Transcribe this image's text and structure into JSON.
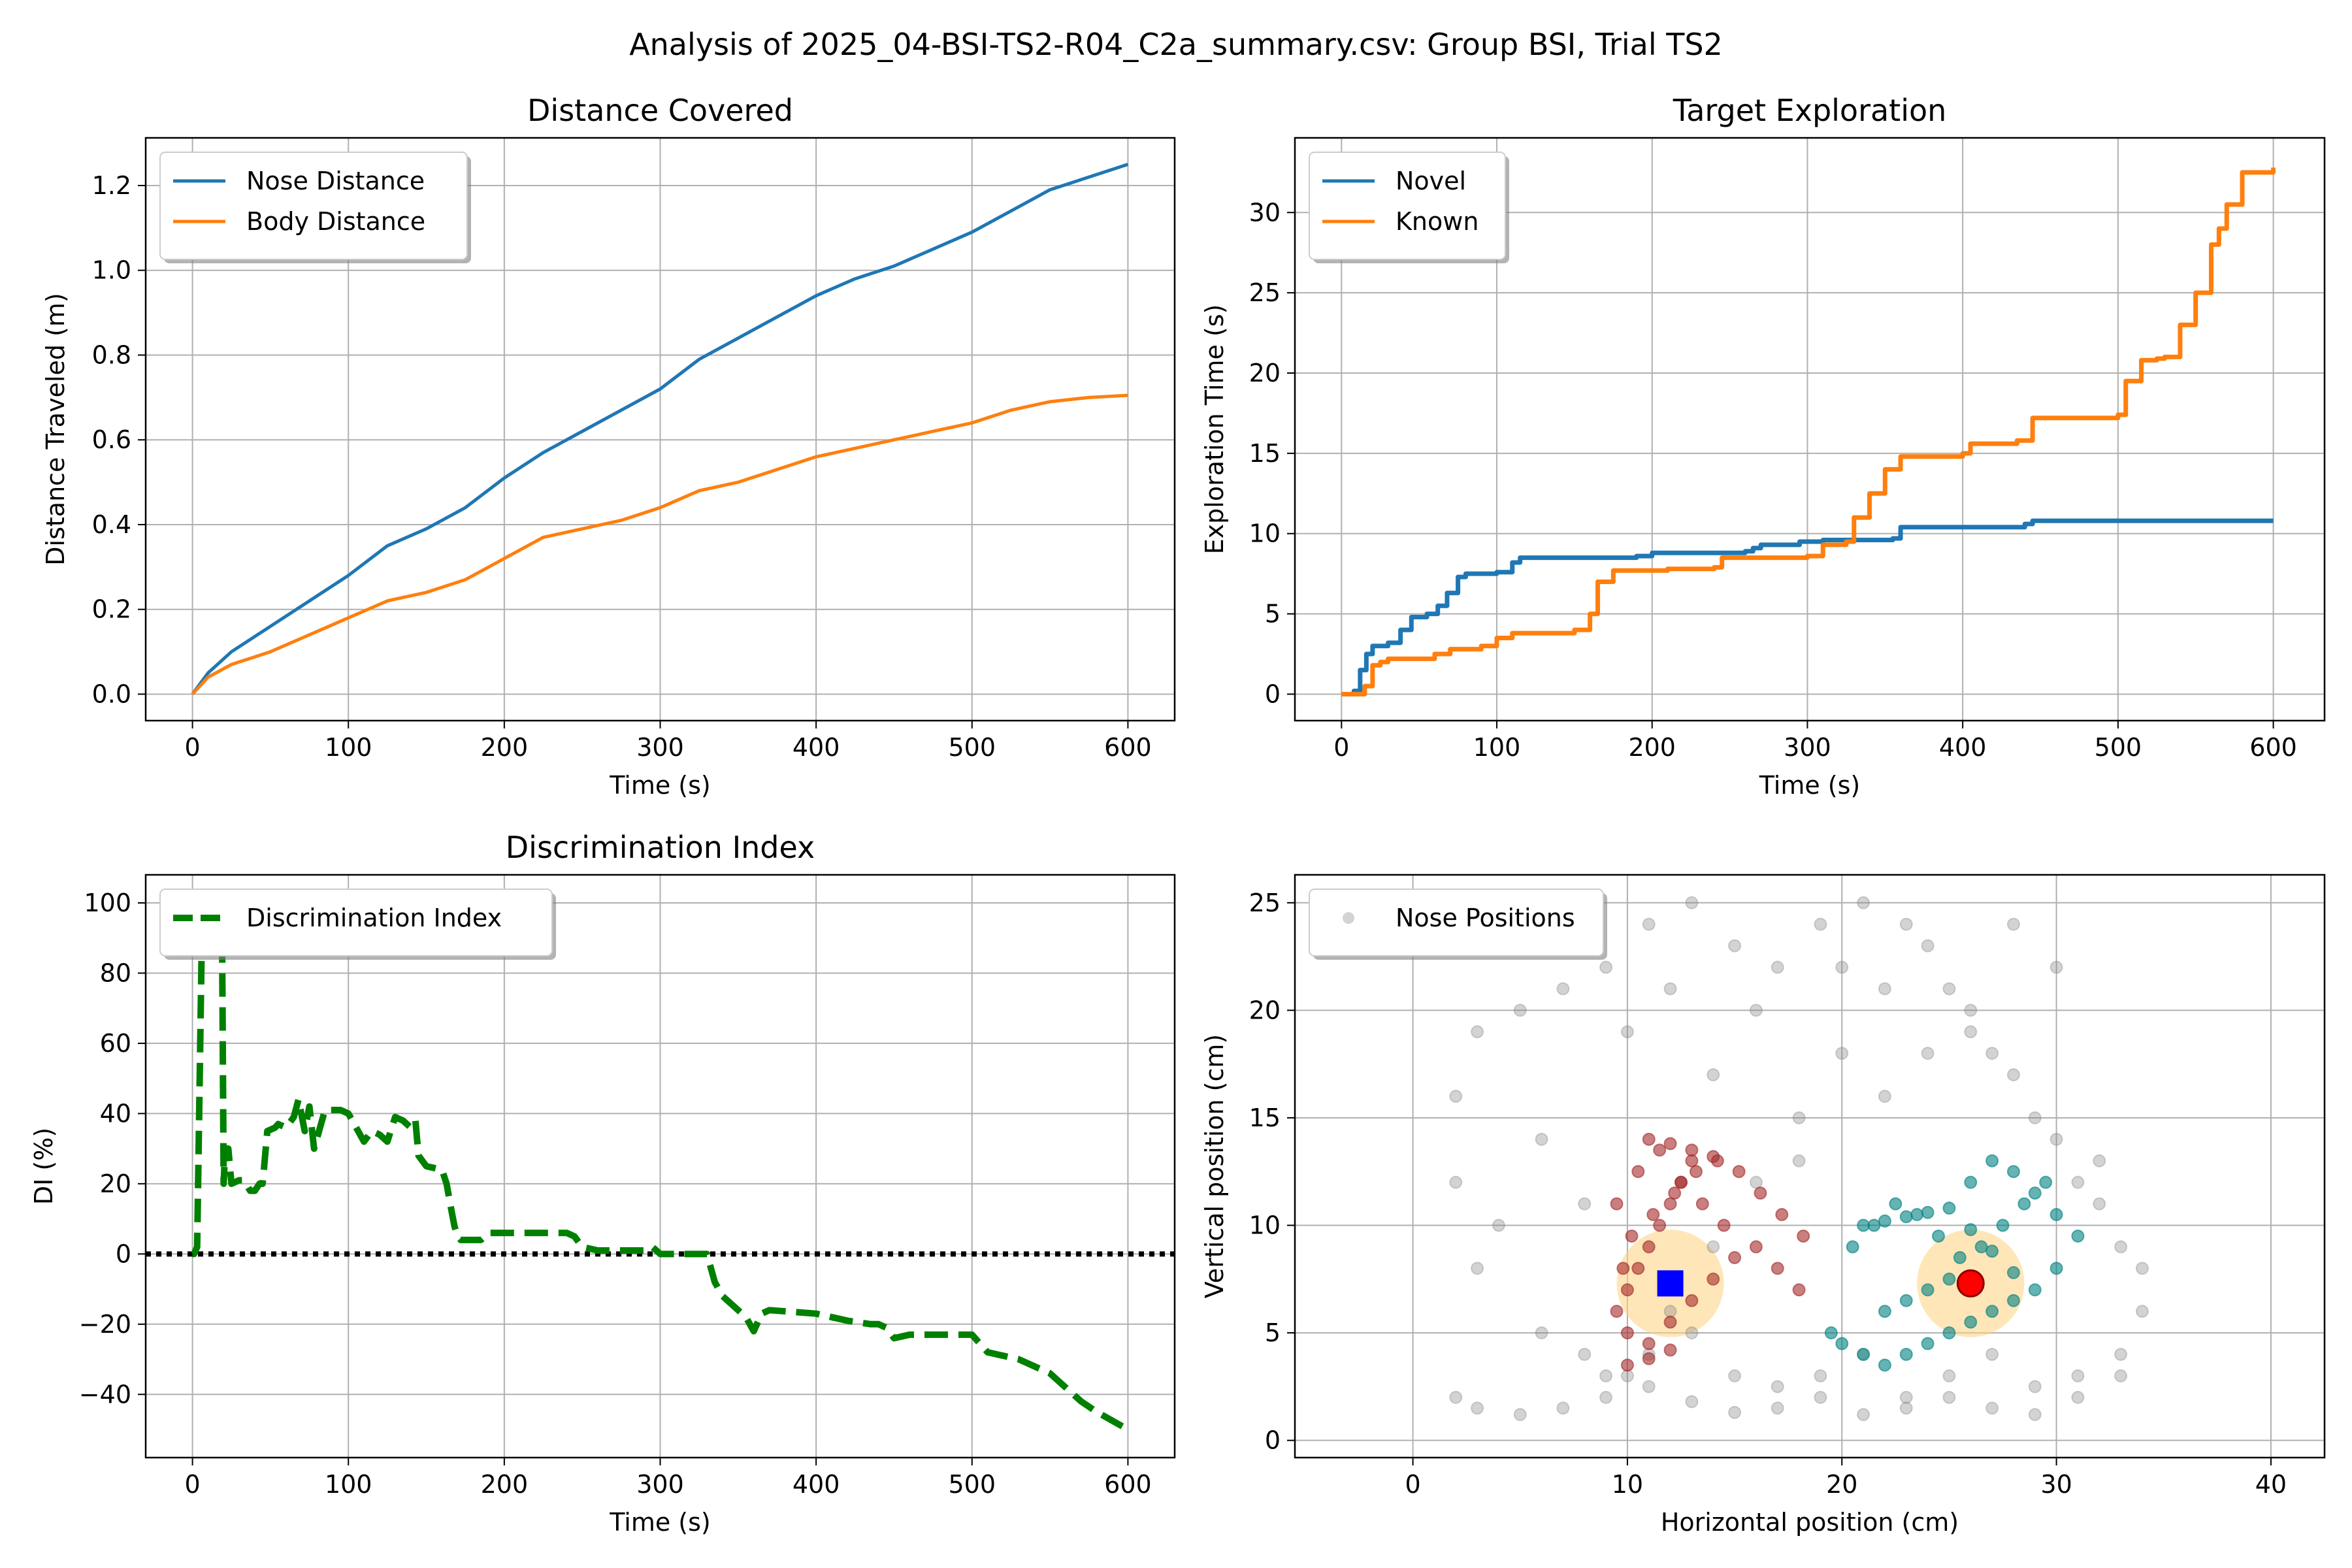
{
  "figure": {
    "suptitle": "Analysis of 2025_04-BSI-TS2-R04_C2a_summary.csv: Group BSI, Trial TS2"
  },
  "colors": {
    "blue": "#1f77b4",
    "orange": "#ff7f0e",
    "green": "#008000",
    "grid": "#b0b0b0",
    "gray": "#808080",
    "teal": "#008080",
    "brown": "#a52a2a",
    "highlight": "#ffd27f",
    "novel_marker": "#ff0000",
    "known_marker": "#0000ff"
  },
  "chart_data": [
    {
      "type": "line",
      "title": "Distance Covered",
      "xlabel": "Time (s)",
      "ylabel": "Distance Traveled (m)",
      "xlim": [
        -30,
        630
      ],
      "ylim": [
        -0.0625,
        1.3125
      ],
      "xticks": [
        0,
        100,
        200,
        300,
        400,
        500,
        600
      ],
      "yticks": [
        0.0,
        0.2,
        0.4,
        0.6,
        0.8,
        1.0,
        1.2
      ],
      "ytick_labels": [
        "0.0",
        "0.2",
        "0.4",
        "0.6",
        "0.8",
        "1.0",
        "1.2"
      ],
      "grid": true,
      "legend_position": "upper-left",
      "series": [
        {
          "name": "Nose Distance",
          "color": "#1f77b4",
          "x": [
            0,
            10,
            25,
            50,
            75,
            100,
            125,
            150,
            175,
            200,
            225,
            250,
            275,
            300,
            325,
            350,
            375,
            400,
            425,
            450,
            475,
            500,
            525,
            550,
            575,
            600
          ],
          "y": [
            0,
            0.05,
            0.1,
            0.16,
            0.22,
            0.28,
            0.35,
            0.39,
            0.44,
            0.51,
            0.57,
            0.62,
            0.67,
            0.72,
            0.79,
            0.84,
            0.89,
            0.94,
            0.98,
            1.01,
            1.05,
            1.09,
            1.14,
            1.19,
            1.22,
            1.25
          ]
        },
        {
          "name": "Body Distance",
          "color": "#ff7f0e",
          "x": [
            0,
            10,
            25,
            50,
            75,
            100,
            125,
            150,
            175,
            200,
            225,
            250,
            275,
            300,
            325,
            350,
            375,
            400,
            425,
            450,
            475,
            500,
            525,
            550,
            575,
            600
          ],
          "y": [
            0,
            0.04,
            0.07,
            0.1,
            0.14,
            0.18,
            0.22,
            0.24,
            0.27,
            0.32,
            0.37,
            0.39,
            0.41,
            0.44,
            0.48,
            0.5,
            0.53,
            0.56,
            0.58,
            0.6,
            0.62,
            0.64,
            0.67,
            0.69,
            0.7,
            0.705
          ]
        }
      ]
    },
    {
      "type": "line",
      "title": "Target Exploration",
      "xlabel": "Time (s)",
      "ylabel": "Exploration Time (s)",
      "xlim": [
        -30,
        633
      ],
      "ylim": [
        -1.65,
        34.65
      ],
      "xticks": [
        0,
        100,
        200,
        300,
        400,
        500,
        600
      ],
      "yticks": [
        0,
        5,
        10,
        15,
        20,
        25,
        30
      ],
      "grid": true,
      "legend_position": "upper-left",
      "series": [
        {
          "name": "Novel",
          "color": "#1f77b4",
          "x": [
            0,
            8,
            12,
            16,
            20,
            30,
            38,
            45,
            55,
            62,
            68,
            75,
            80,
            100,
            110,
            115,
            190,
            200,
            260,
            265,
            270,
            295,
            310,
            355,
            360,
            440,
            445,
            600
          ],
          "y": [
            0,
            0.2,
            1.5,
            2.5,
            3.0,
            3.2,
            4.0,
            4.8,
            5.0,
            5.5,
            6.3,
            7.3,
            7.5,
            7.6,
            8.2,
            8.5,
            8.6,
            8.8,
            8.9,
            9.1,
            9.3,
            9.5,
            9.6,
            9.7,
            10.4,
            10.6,
            10.8,
            10.8
          ]
        },
        {
          "name": "Known",
          "color": "#ff7f0e",
          "x": [
            0,
            15,
            20,
            25,
            30,
            60,
            70,
            90,
            100,
            110,
            150,
            160,
            165,
            175,
            210,
            240,
            245,
            300,
            310,
            325,
            330,
            340,
            350,
            360,
            400,
            405,
            435,
            445,
            500,
            505,
            515,
            525,
            530,
            540,
            550,
            560,
            565,
            570,
            580,
            600
          ],
          "y": [
            0,
            0.5,
            1.8,
            2.0,
            2.2,
            2.5,
            2.8,
            3.0,
            3.5,
            3.8,
            4.0,
            5.0,
            7.0,
            7.7,
            7.8,
            7.9,
            8.5,
            8.6,
            9.3,
            9.5,
            11.0,
            12.5,
            14.0,
            14.8,
            15.0,
            15.6,
            15.8,
            17.2,
            17.4,
            19.5,
            20.8,
            20.9,
            21.0,
            23.0,
            25.0,
            28.0,
            29.0,
            30.5,
            32.5,
            32.8
          ]
        }
      ]
    },
    {
      "type": "line",
      "title": "Discrimination Index",
      "xlabel": "Time (s)",
      "ylabel": "DI (%)",
      "xlim": [
        -30,
        630
      ],
      "ylim": [
        -58,
        108
      ],
      "xticks": [
        0,
        100,
        200,
        300,
        400,
        500,
        600
      ],
      "yticks": [
        -40,
        -20,
        0,
        20,
        40,
        60,
        80,
        100
      ],
      "ytick_labels": [
        "−40",
        "−20",
        "0",
        "20",
        "40",
        "60",
        "80",
        "100"
      ],
      "grid": true,
      "legend_position": "upper-left",
      "reference_line": {
        "y": 0,
        "style": "dotted",
        "color": "#000000"
      },
      "series": [
        {
          "name": "Discrimination Index",
          "color": "#008000",
          "style": "dashed",
          "x": [
            0,
            1,
            3,
            6,
            15,
            19,
            20,
            21,
            23,
            25,
            30,
            33,
            37,
            40,
            43,
            45,
            48,
            53,
            55,
            60,
            65,
            68,
            72,
            75,
            78,
            85,
            95,
            100,
            110,
            115,
            120,
            125,
            130,
            135,
            140,
            143,
            145,
            150,
            160,
            163,
            165,
            168,
            170,
            172,
            180,
            185,
            190,
            200,
            240,
            245,
            250,
            260,
            290,
            295,
            300,
            305,
            330,
            335,
            340,
            345,
            350,
            355,
            360,
            365,
            370,
            400,
            410,
            420,
            435,
            440,
            445,
            450,
            460,
            480,
            490,
            500,
            510,
            520,
            530,
            540,
            545,
            550,
            560,
            570,
            580,
            600
          ],
          "y": [
            0,
            0,
            2,
            90,
            90,
            90,
            20,
            30,
            30,
            20,
            21,
            21,
            18,
            18,
            20,
            20,
            35,
            36,
            37,
            36,
            39,
            44,
            35,
            42,
            30,
            41,
            41,
            40,
            32,
            35,
            34,
            32,
            39,
            38,
            36,
            38,
            28,
            25,
            24,
            20,
            15,
            8,
            5,
            4,
            4,
            4,
            6,
            6,
            6,
            5,
            2,
            1,
            1,
            2,
            0,
            0,
            0,
            -8,
            -12,
            -14,
            -16,
            -18,
            -22,
            -17,
            -16,
            -17,
            -18,
            -19,
            -20,
            -20,
            -21,
            -24,
            -23,
            -23,
            -23,
            -23,
            -28,
            -29,
            -30,
            -32,
            -33,
            -34,
            -38,
            -42,
            -45,
            -50
          ]
        }
      ]
    },
    {
      "type": "scatter",
      "title": "",
      "xlabel": "Horizontal position (cm)",
      "ylabel": "Vertical position (cm)",
      "xlim": [
        -5.5,
        42.5
      ],
      "ylim": [
        -0.8,
        26.3
      ],
      "xticks": [
        0,
        10,
        20,
        30,
        40
      ],
      "yticks": [
        0,
        5,
        10,
        15,
        20,
        25
      ],
      "grid": true,
      "legend_position": "upper-left",
      "series": [
        {
          "name": "Nose Positions",
          "color": "#808080",
          "x": [
            2,
            3,
            5,
            7,
            9,
            11,
            13,
            15,
            17,
            19,
            21,
            23,
            25,
            27,
            29,
            31,
            33,
            34,
            33,
            31,
            29,
            27,
            25,
            23,
            21,
            19,
            17,
            15,
            13,
            11,
            9,
            7,
            5,
            3,
            2,
            2,
            3,
            6,
            8,
            10,
            12,
            14,
            16,
            18,
            20,
            22,
            24,
            26,
            28,
            30,
            32,
            34,
            30,
            26,
            22,
            18,
            14,
            10,
            6,
            4,
            8,
            12,
            16,
            20,
            24,
            28,
            32,
            9,
            11,
            13,
            15,
            17,
            19,
            21,
            23,
            25,
            27,
            29,
            31,
            33
          ],
          "y": [
            2,
            1.5,
            1.2,
            1.5,
            2,
            2.5,
            1.8,
            1.3,
            1.5,
            2,
            1.2,
            1.5,
            2,
            1.5,
            1.2,
            2,
            3,
            6,
            9,
            12,
            15,
            18,
            21,
            24,
            25,
            24,
            22,
            23,
            25,
            24,
            22,
            21,
            20,
            19,
            16,
            12,
            8,
            5,
            4,
            3,
            6,
            9,
            12,
            15,
            18,
            21,
            23,
            20,
            17,
            14,
            11,
            8,
            22,
            19,
            16,
            13,
            17,
            19,
            14,
            10,
            11,
            21,
            20,
            22,
            18,
            24,
            13,
            3,
            4,
            5,
            3,
            2.5,
            3,
            4,
            2,
            3,
            4,
            2.5,
            3,
            4
          ]
        },
        {
          "name": "",
          "color": "#a52a2a",
          "x": [
            9.5,
            10,
            10.5,
            11,
            11.5,
            12,
            12.5,
            13,
            10,
            11,
            12,
            13,
            14,
            15,
            9.5,
            10.5,
            11.5,
            12.5,
            13.5,
            14.5,
            16,
            17,
            18,
            11,
            12,
            13,
            14,
            10,
            11,
            12,
            9.8,
            10.2,
            11.2,
            12.2,
            13.2,
            14.2,
            15.2,
            16.2,
            17.2,
            18.2
          ],
          "y": [
            6,
            7,
            8,
            9,
            10,
            11,
            12,
            13,
            5,
            4.5,
            5.5,
            6.5,
            7.5,
            8.5,
            11,
            12.5,
            13.5,
            12,
            11,
            10,
            9,
            8,
            7,
            14,
            13.8,
            13.5,
            13.2,
            3.5,
            3.8,
            4.2,
            8,
            9.5,
            10.5,
            11.5,
            12.5,
            13,
            12.5,
            11.5,
            10.5,
            9.5
          ]
        },
        {
          "name": "",
          "color": "#008080",
          "x": [
            19.5,
            20,
            21,
            22,
            23,
            24,
            25,
            26,
            27,
            28,
            29,
            30,
            20.5,
            21.5,
            22.5,
            23.5,
            24.5,
            25.5,
            26.5,
            27.5,
            28.5,
            29.5,
            26,
            27,
            28,
            29,
            30,
            31,
            22,
            23,
            24,
            25,
            21,
            22,
            23,
            24,
            25,
            26,
            27,
            28
          ],
          "y": [
            5,
            4.5,
            4,
            3.5,
            4,
            4.5,
            5,
            5.5,
            6,
            6.5,
            7,
            8,
            9,
            10,
            11,
            10.5,
            9.5,
            8.5,
            9,
            10,
            11,
            12,
            12,
            13,
            12.5,
            11.5,
            10.5,
            9.5,
            6,
            6.5,
            7,
            7.5,
            10,
            10.2,
            10.4,
            10.6,
            10.8,
            9.8,
            8.8,
            7.8
          ]
        }
      ],
      "highlights": [
        {
          "x": 12,
          "y": 7.3,
          "radius": 2.5
        },
        {
          "x": 26,
          "y": 7.3,
          "radius": 2.5
        }
      ],
      "markers": [
        {
          "x": 12,
          "y": 7.3,
          "shape": "square",
          "color": "#0000ff"
        },
        {
          "x": 26,
          "y": 7.3,
          "shape": "circle",
          "color": "#ff0000"
        }
      ]
    }
  ]
}
